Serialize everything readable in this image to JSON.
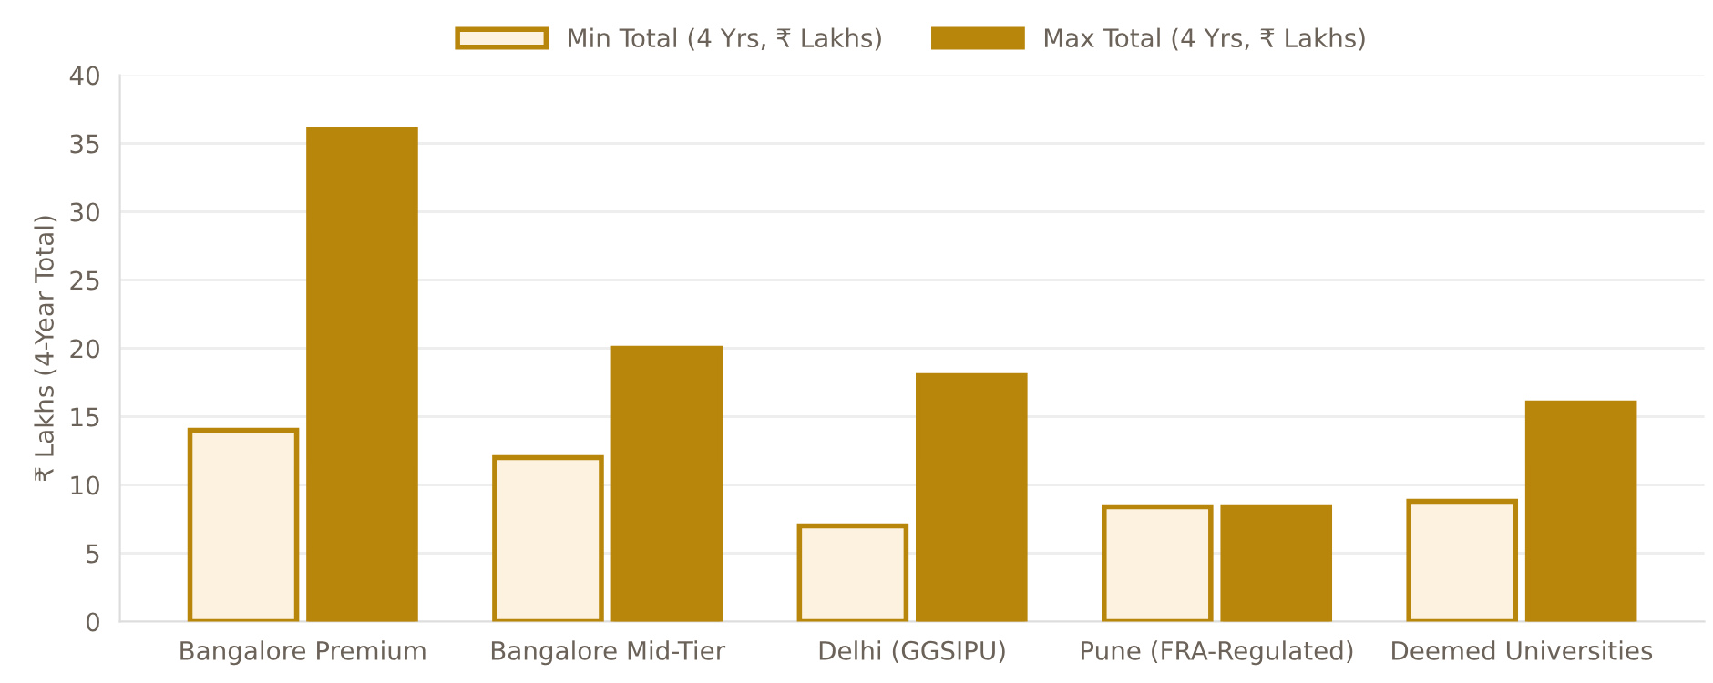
{
  "chart_data": {
    "type": "bar",
    "ylabel": "₹ Lakhs (4-Year Total)",
    "categories": [
      "Bangalore Premium",
      "Bangalore Mid-Tier",
      "Delhi (GGSIPU)",
      "Pune (FRA-Regulated)",
      "Deemed Universities"
    ],
    "series": [
      {
        "name": "Min Total (4 Yrs, ₹ Lakhs)",
        "color": "#fdf2e0",
        "values": [
          14,
          12,
          7,
          8.4,
          8.8
        ]
      },
      {
        "name": "Max Total (4 Yrs, ₹ Lakhs)",
        "color": "#b8860b",
        "values": [
          36,
          20,
          18,
          8.4,
          16
        ]
      }
    ],
    "ylim": [
      0,
      40
    ],
    "yticks": [
      0,
      5,
      10,
      15,
      20,
      25,
      30,
      35,
      40
    ],
    "grid": "y",
    "legend": "top"
  }
}
